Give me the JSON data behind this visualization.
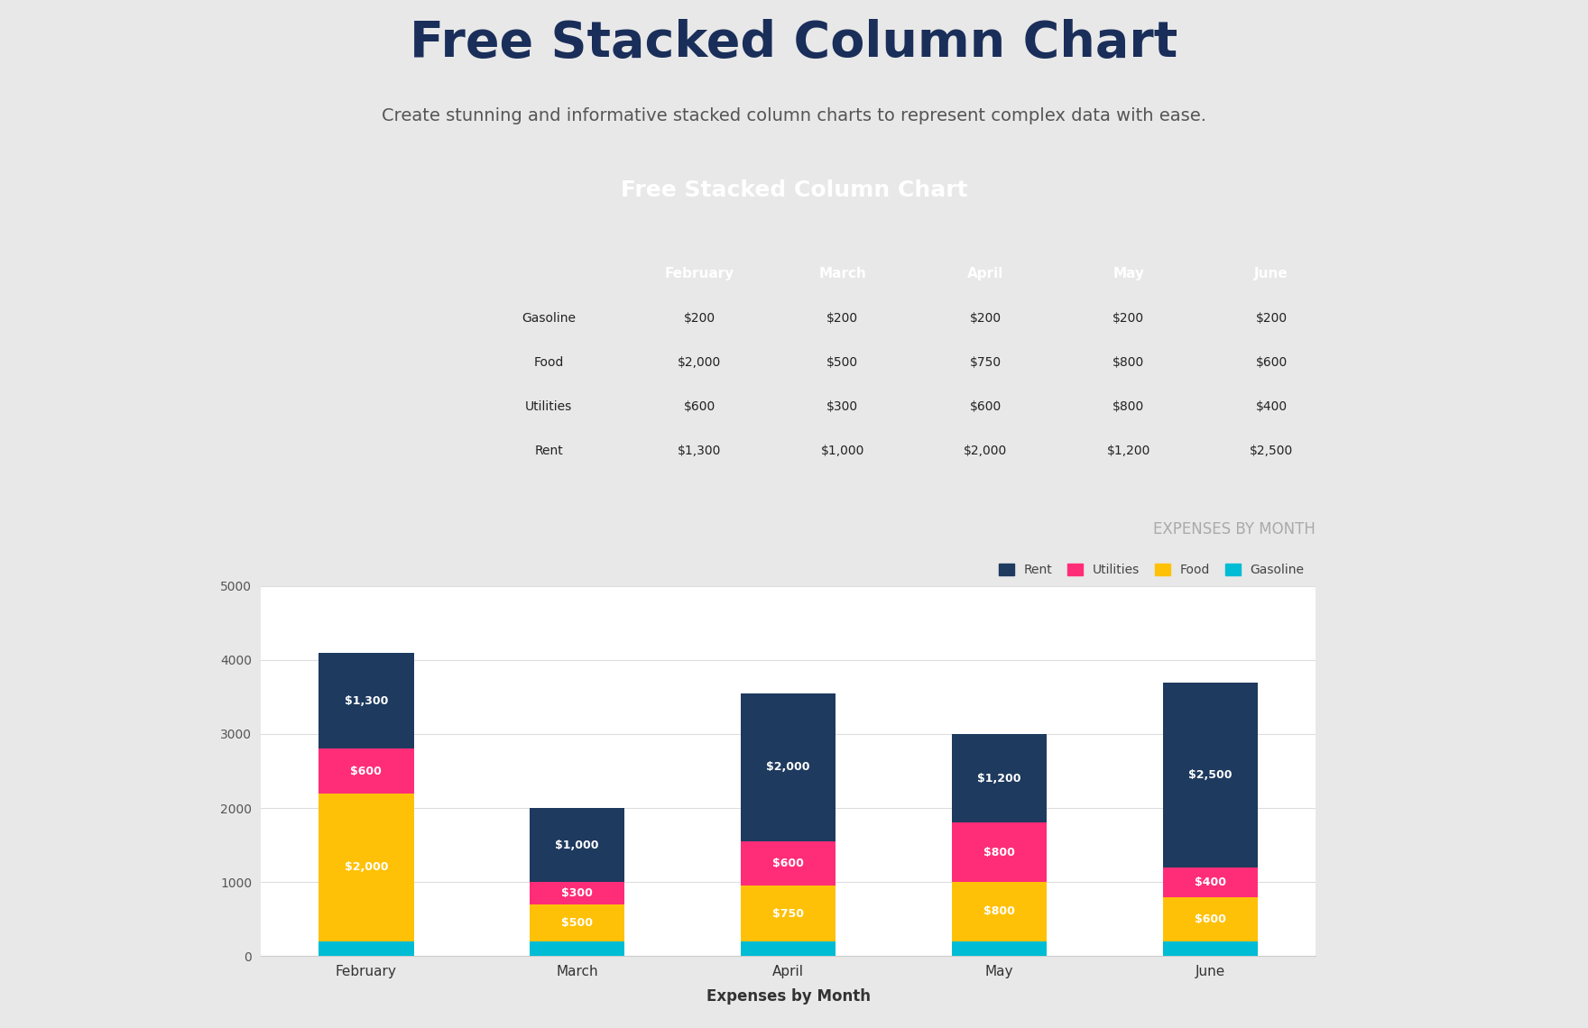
{
  "title_main": "Free Stacked Column Chart",
  "subtitle_main": "Create stunning and informative stacked column charts to represent complex data with ease.",
  "chart_title": "Free Stacked Column Chart",
  "chart_inner_title": "EXPENSES BY MONTH",
  "xlabel": "Expenses by Month",
  "background_color": "#e8e8e8",
  "panel_bg": "#ffffff",
  "header_color": "#1e4e79",
  "header_text_color": "#ffffff",
  "months": [
    "February",
    "March",
    "April",
    "May",
    "June"
  ],
  "categories": [
    "Gasoline",
    "Food",
    "Utilities",
    "Rent"
  ],
  "series": {
    "Gasoline": [
      200,
      200,
      200,
      200,
      200
    ],
    "Food": [
      2000,
      500,
      750,
      800,
      600
    ],
    "Utilities": [
      600,
      300,
      600,
      800,
      400
    ],
    "Rent": [
      1300,
      1000,
      2000,
      1200,
      2500
    ]
  },
  "colors": {
    "Rent": "#1e3a5f",
    "Utilities": "#ff2d78",
    "Food": "#ffc107",
    "Gasoline": "#00bcd4"
  },
  "ylim": [
    0,
    5000
  ],
  "yticks": [
    0,
    1000,
    2000,
    3000,
    4000,
    5000
  ],
  "table_header_color": "#2d6fa8",
  "table_row_colors": [
    "#ffffff",
    "#dce6f1"
  ],
  "value_label_color": "#ffffff",
  "gasoline_label_color": "#00bcd4"
}
